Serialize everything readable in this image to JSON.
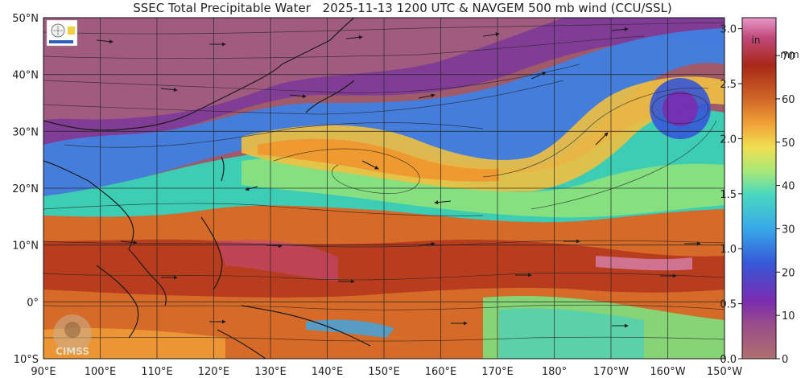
{
  "title": {
    "main": "SSEC Total Precipitable Water",
    "datetime": "2025-11-13 1200 UTC",
    "wind": "& NAVGEM 500 mb wind (CCU/SSL)"
  },
  "map": {
    "lon_range": [
      90,
      210
    ],
    "lat_range": [
      -10,
      50
    ],
    "lon_ticks": [
      "90°E",
      "100°E",
      "110°E",
      "120°E",
      "130°E",
      "140°E",
      "150°E",
      "160°E",
      "170°E",
      "180°",
      "170°W",
      "160°W",
      "150°W"
    ],
    "lat_ticks": [
      "50°N",
      "40°N",
      "30°N",
      "20°N",
      "10°N",
      "0°",
      "10°S"
    ],
    "projection": "equirectangular",
    "grid": true
  },
  "colorbar": {
    "inch_unit": "in",
    "mm_unit": "mm",
    "inch_ticks": [
      "3.0",
      "2.5",
      "2.0",
      "1.5",
      "1.0",
      "0.5",
      "0.0"
    ],
    "mm_ticks": [
      "70",
      "60",
      "50",
      "40",
      "30",
      "20",
      "10",
      "0"
    ],
    "colors": [
      "#b06868",
      "#a04488",
      "#7a2bb0",
      "#3b5cd8",
      "#38a6e8",
      "#4cd8c0",
      "#a8e878",
      "#f0e050",
      "#f0a038",
      "#d06828",
      "#a82818",
      "#c04878",
      "#e898c8"
    ]
  },
  "logos": {
    "top_left": "SSEC logo",
    "bottom_left": "CIMSS"
  }
}
